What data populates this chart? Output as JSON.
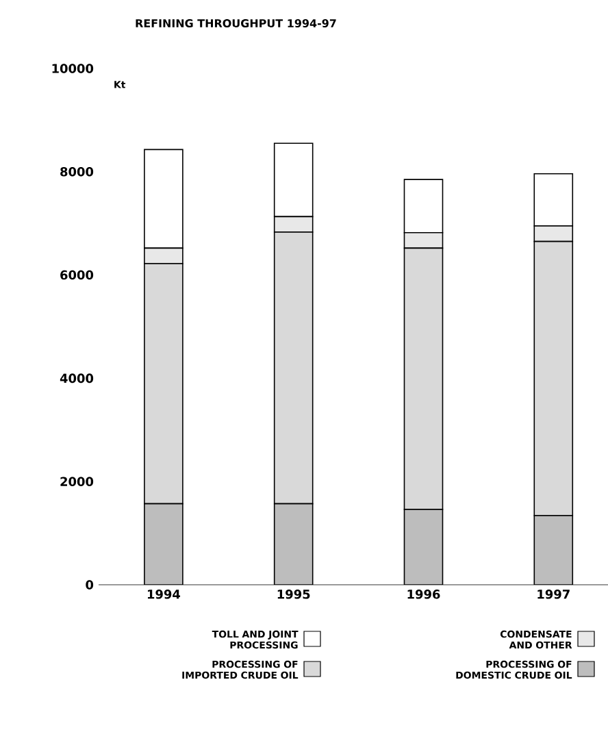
{
  "chart_data": {
    "type": "bar",
    "stacked": true,
    "title": "REFINING THROUGHPUT 1994-97",
    "ylabel": "Kt",
    "categories": [
      "1994",
      "1995",
      "1996",
      "1997"
    ],
    "series": [
      {
        "name": "PROCESSING OF DOMESTIC CRUDE OIL",
        "color": "#bdbdbd",
        "values": [
          1570,
          1570,
          1460,
          1340
        ]
      },
      {
        "name": "PROCESSING OF IMPORTED CRUDE OIL",
        "color": "#d9d9d9",
        "values": [
          4650,
          5260,
          5060,
          5310
        ]
      },
      {
        "name": "CONDENSATE AND OTHER",
        "color": "#e8e8e8",
        "values": [
          300,
          300,
          300,
          300
        ]
      },
      {
        "name": "TOLL AND JOINT PROCESSING",
        "color": "#ffffff",
        "values": [
          1910,
          1420,
          1030,
          1010
        ]
      }
    ],
    "ylim": [
      0,
      10000
    ],
    "yticks": [
      0,
      2000,
      4000,
      6000,
      8000,
      10000
    ],
    "legend": "bottom"
  }
}
